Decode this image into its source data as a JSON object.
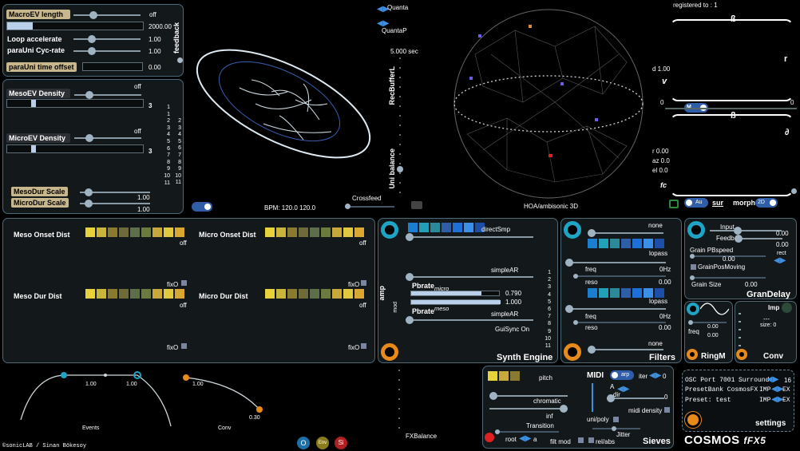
{
  "macro": {
    "length_label": "MacroEV length",
    "length_toggle": "off",
    "length_value": "2000.00",
    "loop_label": "Loop  accelerate",
    "loop_value": "1.00",
    "para_label": "paraUni  Cyc-rate",
    "para_value": "1.00",
    "offset_label": "paraUni time offset",
    "offset_value": "0.00",
    "feedback": "feedback"
  },
  "meso": {
    "toggle": "off",
    "label": "MesoEV   Density",
    "value": "3"
  },
  "micro": {
    "toggle": "off",
    "label": "MicroEV   Density",
    "value": "3"
  },
  "scales": {
    "meso_label": "MesoDur   Scale",
    "meso_value": "1.00",
    "micro_label": "MicroDur   Scale",
    "micro_value": "1.00"
  },
  "numbers_col1": [
    "1",
    "1",
    "2",
    "3",
    "4",
    "5",
    "6",
    "7",
    "8",
    "9",
    "10",
    "11"
  ],
  "numbers_col2": [
    "2",
    "3",
    "4",
    "5",
    "6",
    "7",
    "8",
    "9",
    "10",
    "11"
  ],
  "center": {
    "bpm": "BPM: 120.0  120.0",
    "crossfeed": "Crossfeed",
    "quanta": "Quanta",
    "quantap": "QuantaP",
    "recbuffer": "RecBufferL",
    "rec_value": "5.000 sec",
    "unibalance": "Uni balance",
    "hoa": "HOA/ambisonic 3D"
  },
  "spatial": {
    "registered": "registered to : 1",
    "b_top": "ß",
    "r": "r",
    "v": "v",
    "d": "d 1.00",
    "zero1": "0",
    "zero2": "0",
    "m": "M",
    "b_mid": "ß",
    "partial": "∂",
    "r_val": "r 0.00",
    "az": "az 0.0",
    "el": "el 0.0",
    "fc": "fc",
    "au": "Au",
    "sur": "sur",
    "morph": "morph",
    "twod": "2D"
  },
  "dist": {
    "meso_onset": "Meso Onset Dist",
    "micro_onset": "Micro Onset Dist",
    "meso_dur": "Meso Dur  Dist",
    "micro_dur": "Micro Dur Dist",
    "off": "off",
    "fixo": "fixO"
  },
  "synth": {
    "title": "Synth Engine",
    "directsmp": "directSmp",
    "simplear1": "simpleAR",
    "pbrate_micro": "Pbrate",
    "micro_sub": "micro",
    "micro_val": "0.790",
    "meso_val": "1.000",
    "pbrate_meso": "Pbrate",
    "meso_sub": "meso",
    "simplear2": "simpleAR",
    "guisync": "GuiSync On",
    "amp": "amp",
    "mod": "mod",
    "numbers": [
      "1",
      "2",
      "3",
      "4",
      "5",
      "6",
      "7",
      "8",
      "9",
      "10",
      "11"
    ]
  },
  "filters": {
    "title": "Filters",
    "none1": "none",
    "lopass1": "lopass",
    "freq1": "freq",
    "hz1": "0Hz",
    "reso1": "reso",
    "reso_val1": "0.00",
    "lopass2": "lopass",
    "freq2": "freq",
    "hz2": "0Hz",
    "reso2": "reso",
    "reso_val2": "0.00",
    "none2": "none"
  },
  "grandelay": {
    "title": "GranDelay",
    "input": "Input",
    "input_val": "0.00",
    "feedb": "Feedb",
    "feedb_val": "0.00",
    "grain_pb": "Grain PBspeed",
    "grain_pb_val": "0.00",
    "rect": "rect",
    "grainpos": "GrainPosMoving",
    "grainsize": "Grain Size",
    "grainsize_val": "0.00"
  },
  "ringm": {
    "title": "RingM",
    "freq": "freq",
    "val1": "0.00",
    "val2": "0.00"
  },
  "conv": {
    "title": "Conv",
    "imp": "Imp",
    "dash": "---",
    "size": "size: 0"
  },
  "envelopes": {
    "events": "Events",
    "conv": "Conv",
    "v1": "1.00",
    "v2": "1.00",
    "v3": "1.00",
    "v4": "0.30"
  },
  "footer": {
    "credit": "©sonicLAB / Sinan Bökesoy",
    "fxbalance": "FXBalance",
    "o": "O",
    "env": "Env",
    "si": "Si"
  },
  "sieves": {
    "title": "Sieves",
    "pitch": "pitch",
    "chromatic": "chromatic",
    "inf": "inf",
    "transition": "Transition",
    "root": "root",
    "root_val": "a",
    "midi": "MIDI",
    "arp": "arp",
    "iter": "iter",
    "iter_val": "0",
    "a": "A",
    "dir": "dir",
    "dir_val": "0",
    "midi_density": "midi density",
    "unipoly": "uni/poly",
    "jitter": "Jitter",
    "filtmod": "filt mod",
    "relabs": "rel/abs"
  },
  "settings": {
    "osc": "OSC Port 7001",
    "surround": "Surround",
    "surround_val": "16",
    "presetbank": "PresetBank  CosmosFX",
    "imp1": "IMP",
    "ex1": "EX",
    "preset": "Preset: test",
    "imp2": "IMP",
    "ex2": "EX",
    "title": "settings"
  },
  "brand": "COSMOS",
  "brand_fx": "fFX5",
  "colors": {
    "orange": "#e88a1a",
    "teal": "#1ea4c4",
    "blue": "#2f6fd8"
  }
}
